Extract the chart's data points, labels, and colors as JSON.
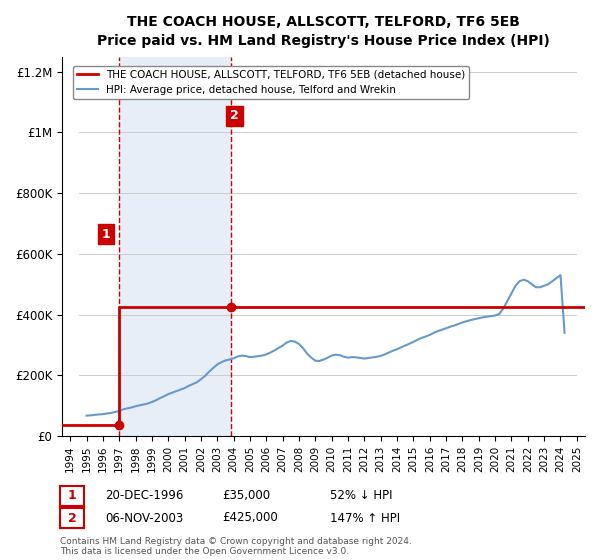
{
  "title": "THE COACH HOUSE, ALLSCOTT, TELFORD, TF6 5EB",
  "subtitle": "Price paid vs. HM Land Registry's House Price Index (HPI)",
  "legend_line1": "THE COACH HOUSE, ALLSCOTT, TELFORD, TF6 5EB (detached house)",
  "legend_line2": "HPI: Average price, detached house, Telford and Wrekin",
  "annotation1_label": "1",
  "annotation1_date": "20-DEC-1996",
  "annotation1_price": "£35,000",
  "annotation1_hpi": "52% ↓ HPI",
  "annotation2_label": "2",
  "annotation2_date": "06-NOV-2003",
  "annotation2_price": "£425,000",
  "annotation2_hpi": "147% ↑ HPI",
  "footer1": "Contains HM Land Registry data © Crown copyright and database right 2024.",
  "footer2": "This data is licensed under the Open Government Licence v3.0.",
  "sale1_x": 1996.97,
  "sale1_y": 35000,
  "sale2_x": 2003.85,
  "sale2_y": 425000,
  "hpi_color": "#6699cc",
  "property_color": "#cc0000",
  "background_hatched_color": "#e8eef8",
  "ylim": [
    0,
    1250000
  ],
  "xlim_start": 1993.5,
  "xlim_end": 2025.5,
  "yticks": [
    0,
    200000,
    400000,
    600000,
    800000,
    1000000,
    1200000
  ],
  "ytick_labels": [
    "£0",
    "£200K",
    "£400K",
    "£600K",
    "£800K",
    "£1M",
    "£1.2M"
  ],
  "xticks": [
    1994,
    1995,
    1996,
    1997,
    1998,
    1999,
    2000,
    2001,
    2002,
    2003,
    2004,
    2005,
    2006,
    2007,
    2008,
    2009,
    2010,
    2011,
    2012,
    2013,
    2014,
    2015,
    2016,
    2017,
    2018,
    2019,
    2020,
    2021,
    2022,
    2023,
    2024,
    2025
  ],
  "hpi_data_x": [
    1995.0,
    1995.25,
    1995.5,
    1995.75,
    1996.0,
    1996.25,
    1996.5,
    1996.75,
    1997.0,
    1997.25,
    1997.5,
    1997.75,
    1998.0,
    1998.25,
    1998.5,
    1998.75,
    1999.0,
    1999.25,
    1999.5,
    1999.75,
    2000.0,
    2000.25,
    2000.5,
    2000.75,
    2001.0,
    2001.25,
    2001.5,
    2001.75,
    2002.0,
    2002.25,
    2002.5,
    2002.75,
    2003.0,
    2003.25,
    2003.5,
    2003.75,
    2004.0,
    2004.25,
    2004.5,
    2004.75,
    2005.0,
    2005.25,
    2005.5,
    2005.75,
    2006.0,
    2006.25,
    2006.5,
    2006.75,
    2007.0,
    2007.25,
    2007.5,
    2007.75,
    2008.0,
    2008.25,
    2008.5,
    2008.75,
    2009.0,
    2009.25,
    2009.5,
    2009.75,
    2010.0,
    2010.25,
    2010.5,
    2010.75,
    2011.0,
    2011.25,
    2011.5,
    2011.75,
    2012.0,
    2012.25,
    2012.5,
    2012.75,
    2013.0,
    2013.25,
    2013.5,
    2013.75,
    2014.0,
    2014.25,
    2014.5,
    2014.75,
    2015.0,
    2015.25,
    2015.5,
    2015.75,
    2016.0,
    2016.25,
    2016.5,
    2016.75,
    2017.0,
    2017.25,
    2017.5,
    2017.75,
    2018.0,
    2018.25,
    2018.5,
    2018.75,
    2019.0,
    2019.25,
    2019.5,
    2019.75,
    2020.0,
    2020.25,
    2020.5,
    2020.75,
    2021.0,
    2021.25,
    2021.5,
    2021.75,
    2022.0,
    2022.25,
    2022.5,
    2022.75,
    2023.0,
    2023.25,
    2023.5,
    2023.75,
    2024.0,
    2024.25
  ],
  "hpi_data_y": [
    67000,
    68000,
    69500,
    71000,
    72000,
    74000,
    76000,
    79000,
    83000,
    88000,
    91000,
    94000,
    98000,
    101000,
    104000,
    107000,
    112000,
    118000,
    125000,
    131000,
    138000,
    143000,
    148000,
    153000,
    158000,
    165000,
    171000,
    177000,
    187000,
    198000,
    212000,
    224000,
    236000,
    243000,
    249000,
    252000,
    256000,
    262000,
    265000,
    263000,
    260000,
    261000,
    263000,
    265000,
    269000,
    275000,
    282000,
    290000,
    298000,
    308000,
    313000,
    311000,
    303000,
    289000,
    271000,
    258000,
    248000,
    247000,
    252000,
    258000,
    265000,
    268000,
    266000,
    261000,
    258000,
    260000,
    259000,
    257000,
    255000,
    257000,
    259000,
    261000,
    264000,
    269000,
    275000,
    281000,
    286000,
    292000,
    298000,
    304000,
    310000,
    317000,
    323000,
    328000,
    333000,
    340000,
    346000,
    350000,
    355000,
    360000,
    364000,
    369000,
    374000,
    378000,
    382000,
    385000,
    388000,
    391000,
    393000,
    395000,
    397000,
    402000,
    420000,
    445000,
    470000,
    495000,
    510000,
    515000,
    510000,
    500000,
    490000,
    490000,
    495000,
    500000,
    510000,
    520000,
    530000,
    340000
  ],
  "property_line_x": [
    1993.5,
    1996.97,
    1996.97,
    2003.85,
    2003.85,
    2025.5
  ],
  "property_line_y": [
    35000,
    35000,
    425000,
    425000,
    425000,
    425000
  ]
}
